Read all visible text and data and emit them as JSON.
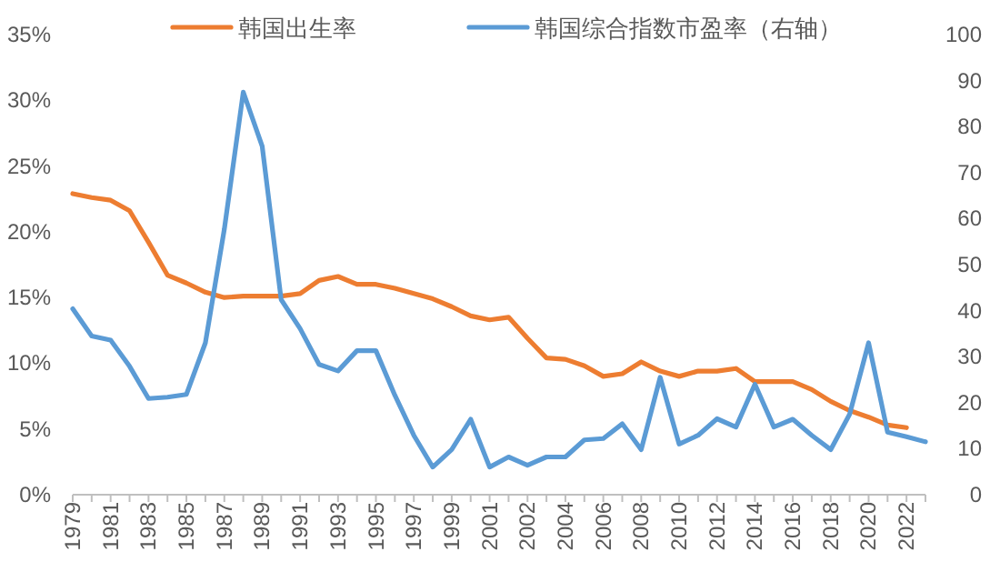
{
  "chart_data": {
    "type": "line",
    "legend": "top",
    "categories": [
      "1979",
      null,
      "1981",
      null,
      "1983",
      null,
      "1985",
      null,
      "1987",
      null,
      "1989",
      null,
      "1991",
      null,
      "1993",
      null,
      "1995",
      null,
      "1997",
      null,
      "1999",
      null,
      "2001",
      null,
      "2002",
      null,
      "2004",
      null,
      "2006",
      null,
      "2008",
      null,
      "2010",
      null,
      "2012",
      null,
      "2014",
      null,
      "2016",
      null,
      "2018",
      null,
      "2020",
      null,
      "2022",
      null
    ],
    "series": [
      {
        "name": "韩国出生率",
        "color": "#ed7d31",
        "values": [
          22.9,
          22.6,
          22.4,
          21.6,
          19.2,
          16.7,
          16.1,
          15.4,
          15.0,
          15.1,
          15.1,
          15.1,
          15.3,
          16.3,
          16.6,
          16.0,
          16.0,
          15.7,
          15.3,
          14.9,
          14.3,
          13.6,
          13.3,
          13.5,
          11.9,
          10.4,
          10.3,
          9.8,
          9.0,
          9.2,
          10.1,
          9.4,
          9.0,
          9.4,
          9.4,
          9.6,
          8.6,
          8.6,
          8.6,
          8.0,
          7.1,
          6.4,
          5.9,
          5.3,
          5.1,
          null
        ]
      },
      {
        "name": "韩国综合指数市盈率（右轴）",
        "color": "#5b9bd5",
        "axis": "y2",
        "values": [
          40.4,
          34.5,
          33.6,
          27.9,
          20.9,
          21.2,
          21.8,
          33.0,
          57.7,
          87.5,
          75.7,
          42.4,
          36.1,
          28.3,
          26.9,
          31.3,
          31.3,
          21.6,
          12.9,
          6.0,
          9.8,
          16.4,
          6.0,
          8.2,
          6.4,
          8.2,
          8.2,
          11.9,
          12.2,
          15.4,
          9.8,
          25.5,
          11.0,
          12.9,
          16.5,
          14.7,
          24.0,
          14.7,
          16.4,
          12.9,
          9.8,
          17.5,
          33.0,
          13.6,
          12.6,
          11.5
        ]
      }
    ],
    "ylim": [
      0,
      35
    ],
    "yticks": [
      {
        "value": 0,
        "label": "0%"
      },
      {
        "value": 5,
        "label": "5%"
      },
      {
        "value": 10,
        "label": "10%"
      },
      {
        "value": 15,
        "label": "15%"
      },
      {
        "value": 20,
        "label": "20%"
      },
      {
        "value": 25,
        "label": "25%"
      },
      {
        "value": 30,
        "label": "30%"
      },
      {
        "value": 35,
        "label": "35%"
      }
    ],
    "y2lim": [
      0,
      100
    ],
    "y2ticks": [
      0,
      10,
      20,
      30,
      40,
      50,
      60,
      70,
      80,
      90,
      100
    ]
  }
}
